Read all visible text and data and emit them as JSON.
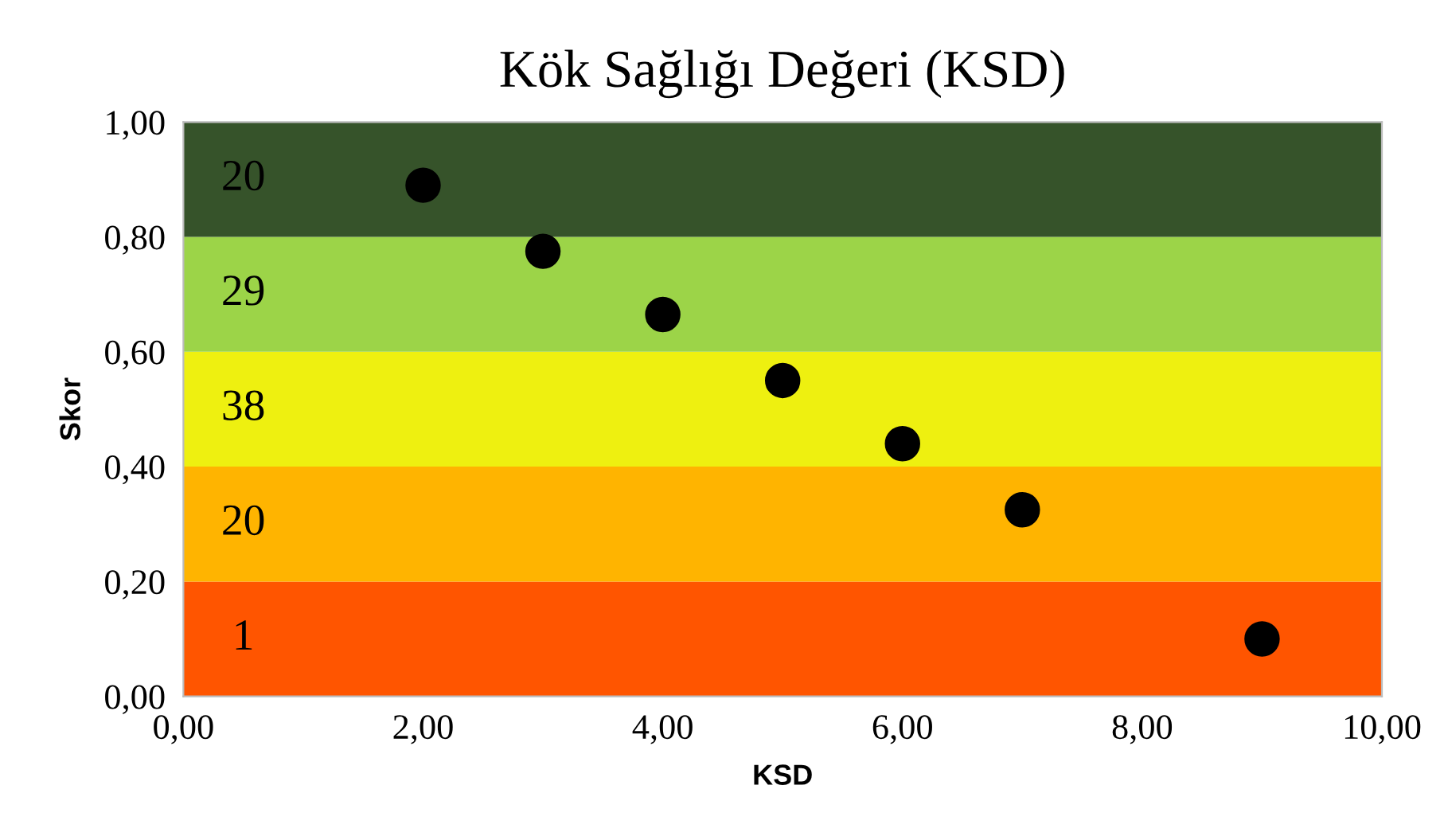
{
  "chart_data": {
    "type": "scatter",
    "title": "Kök Sağlığı Değeri (KSD)",
    "xlabel": "KSD",
    "ylabel": "Skor",
    "x": [
      2,
      3,
      4,
      5,
      6,
      7,
      9
    ],
    "values": [
      0.89,
      0.775,
      0.665,
      0.55,
      0.44,
      0.325,
      0.1
    ],
    "color": "#000000",
    "marker": "circle",
    "grid": false,
    "legend": false,
    "xlim": [
      0,
      10
    ],
    "xticks": [
      {
        "value": 0,
        "label": "0,00"
      },
      {
        "value": 2,
        "label": "2,00"
      },
      {
        "value": 4,
        "label": "4,00"
      },
      {
        "value": 6,
        "label": "6,00"
      },
      {
        "value": 8,
        "label": "8,00"
      },
      {
        "value": 10,
        "label": "10,00"
      }
    ],
    "ylim": [
      0,
      1
    ],
    "yticks": [
      {
        "value": 0,
        "label": "0,00"
      },
      {
        "value": 0.2,
        "label": "0,20"
      },
      {
        "value": 0.4,
        "label": "0,40"
      },
      {
        "value": 0.6,
        "label": "0,60"
      },
      {
        "value": 0.8,
        "label": "0,80"
      },
      {
        "value": 1,
        "label": "1,00"
      }
    ],
    "bands": [
      {
        "axis": "y",
        "from": 0,
        "to": 0.2,
        "label": "1",
        "color": "#ff5500"
      },
      {
        "axis": "y",
        "from": 0.2,
        "to": 0.4,
        "label": "20",
        "color": "#ffb400"
      },
      {
        "axis": "y",
        "from": 0.4,
        "to": 0.6,
        "label": "38",
        "color": "#eef010"
      },
      {
        "axis": "y",
        "from": 0.6,
        "to": 0.8,
        "label": "29",
        "color": "#9cd448"
      },
      {
        "axis": "y",
        "from": 0.8,
        "to": 1,
        "label": "20",
        "color": "#36532a"
      }
    ]
  }
}
